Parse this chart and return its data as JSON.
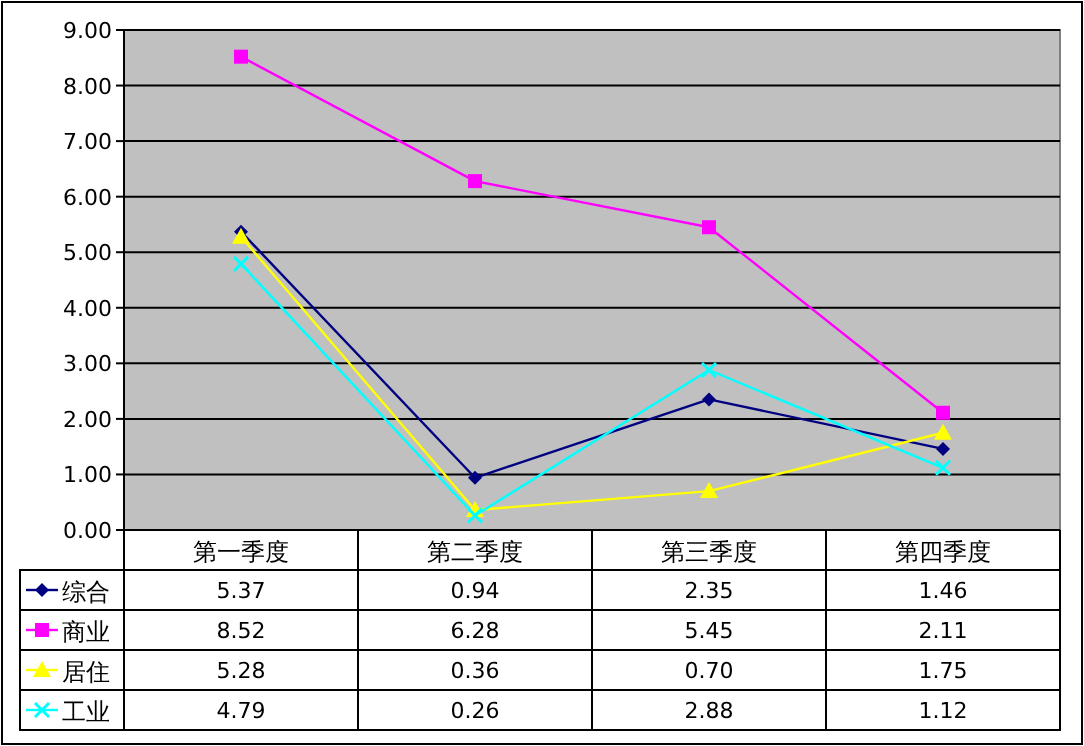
{
  "chart_data": {
    "type": "line",
    "categories": [
      "第一季度",
      "第二季度",
      "第三季度",
      "第四季度"
    ],
    "series": [
      {
        "name": "综合",
        "color": "#000080",
        "marker": "diamond",
        "values": [
          5.37,
          0.94,
          2.35,
          1.46
        ],
        "value_labels": [
          "5.37",
          "0.94",
          "2.35",
          "1.46"
        ]
      },
      {
        "name": "商业",
        "color": "#ff00ff",
        "marker": "square",
        "values": [
          8.52,
          6.28,
          5.45,
          2.11
        ],
        "value_labels": [
          "8.52",
          "6.28",
          "5.45",
          "2.11"
        ]
      },
      {
        "name": "居住",
        "color": "#ffff00",
        "marker": "triangle",
        "values": [
          5.28,
          0.36,
          0.7,
          1.75
        ],
        "value_labels": [
          "5.28",
          "0.36",
          "0.70",
          "1.75"
        ]
      },
      {
        "name": "工业",
        "color": "#00ffff",
        "marker": "cross",
        "values": [
          4.79,
          0.26,
          2.88,
          1.12
        ],
        "value_labels": [
          "4.79",
          "0.26",
          "2.88",
          "1.12"
        ]
      }
    ],
    "ylim": [
      0,
      9
    ],
    "yticks": [
      {
        "value": 0,
        "label": "0.00"
      },
      {
        "value": 1,
        "label": "1.00"
      },
      {
        "value": 2,
        "label": "2.00"
      },
      {
        "value": 3,
        "label": "3.00"
      },
      {
        "value": 4,
        "label": "4.00"
      },
      {
        "value": 5,
        "label": "5.00"
      },
      {
        "value": 6,
        "label": "6.00"
      },
      {
        "value": 7,
        "label": "7.00"
      },
      {
        "value": 8,
        "label": "8.00"
      },
      {
        "value": 9,
        "label": "9.00"
      }
    ],
    "grid": "y",
    "legend": "bottom left",
    "line_style": "solid"
  }
}
